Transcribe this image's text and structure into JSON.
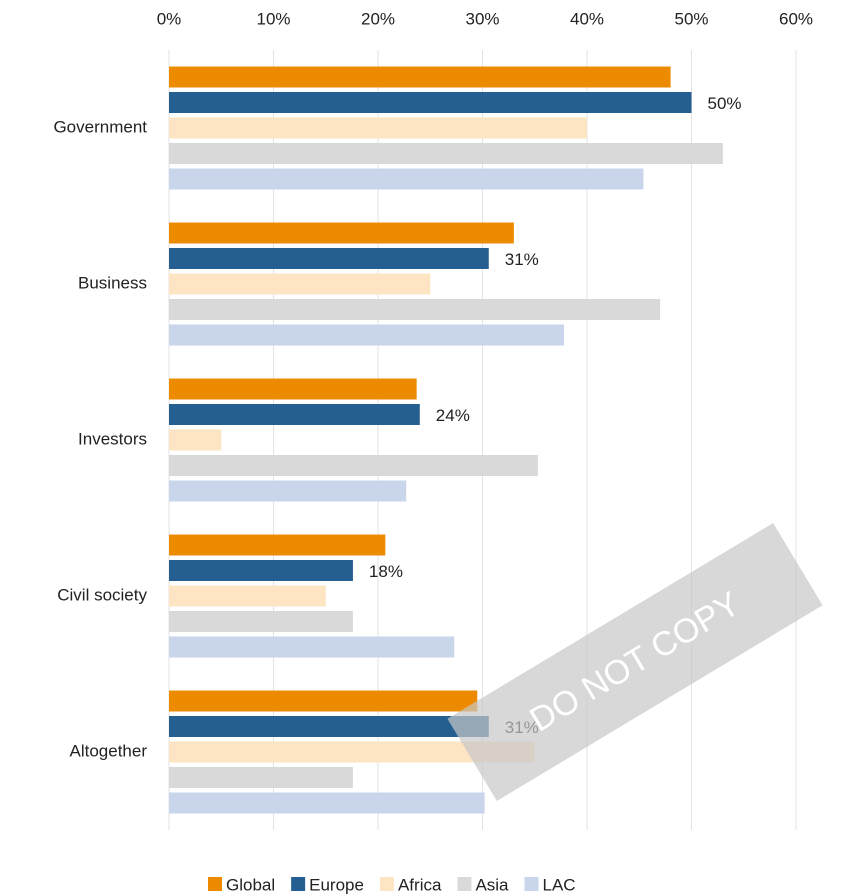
{
  "chart_data": {
    "type": "hbar",
    "categories": [
      "Government",
      "Business",
      "Investors",
      "Civil society",
      "Altogether"
    ],
    "series": [
      {
        "name": "Global",
        "color": "#ed8b00",
        "values": [
          48,
          33,
          23.7,
          20.7,
          29.5
        ]
      },
      {
        "name": "Europe",
        "color": "#255e91",
        "values": [
          50,
          30.6,
          24,
          17.6,
          30.6
        ],
        "value_labels": [
          "50%",
          "31%",
          "24%",
          "18%",
          "31%"
        ]
      },
      {
        "name": "Africa",
        "color": "#fde5c4",
        "values": [
          40,
          25,
          5,
          15,
          35
        ]
      },
      {
        "name": "Asia",
        "color": "#d9d9d9",
        "values": [
          53,
          47,
          35.3,
          17.6,
          17.6
        ]
      },
      {
        "name": "LAC",
        "color": "#c9d5eb",
        "values": [
          45.4,
          37.8,
          22.7,
          27.3,
          30.2
        ]
      }
    ],
    "xlim": [
      0,
      60
    ],
    "xticks": [
      {
        "value": 0,
        "label": "0%"
      },
      {
        "value": 10,
        "label": "10%"
      },
      {
        "value": 20,
        "label": "20%"
      },
      {
        "value": 30,
        "label": "30%"
      },
      {
        "value": 40,
        "label": "40%"
      },
      {
        "value": 50,
        "label": "50%"
      },
      {
        "value": 60,
        "label": "60%"
      }
    ],
    "grid": true,
    "legend": "bottom",
    "watermark": "DO NOT COPY"
  }
}
